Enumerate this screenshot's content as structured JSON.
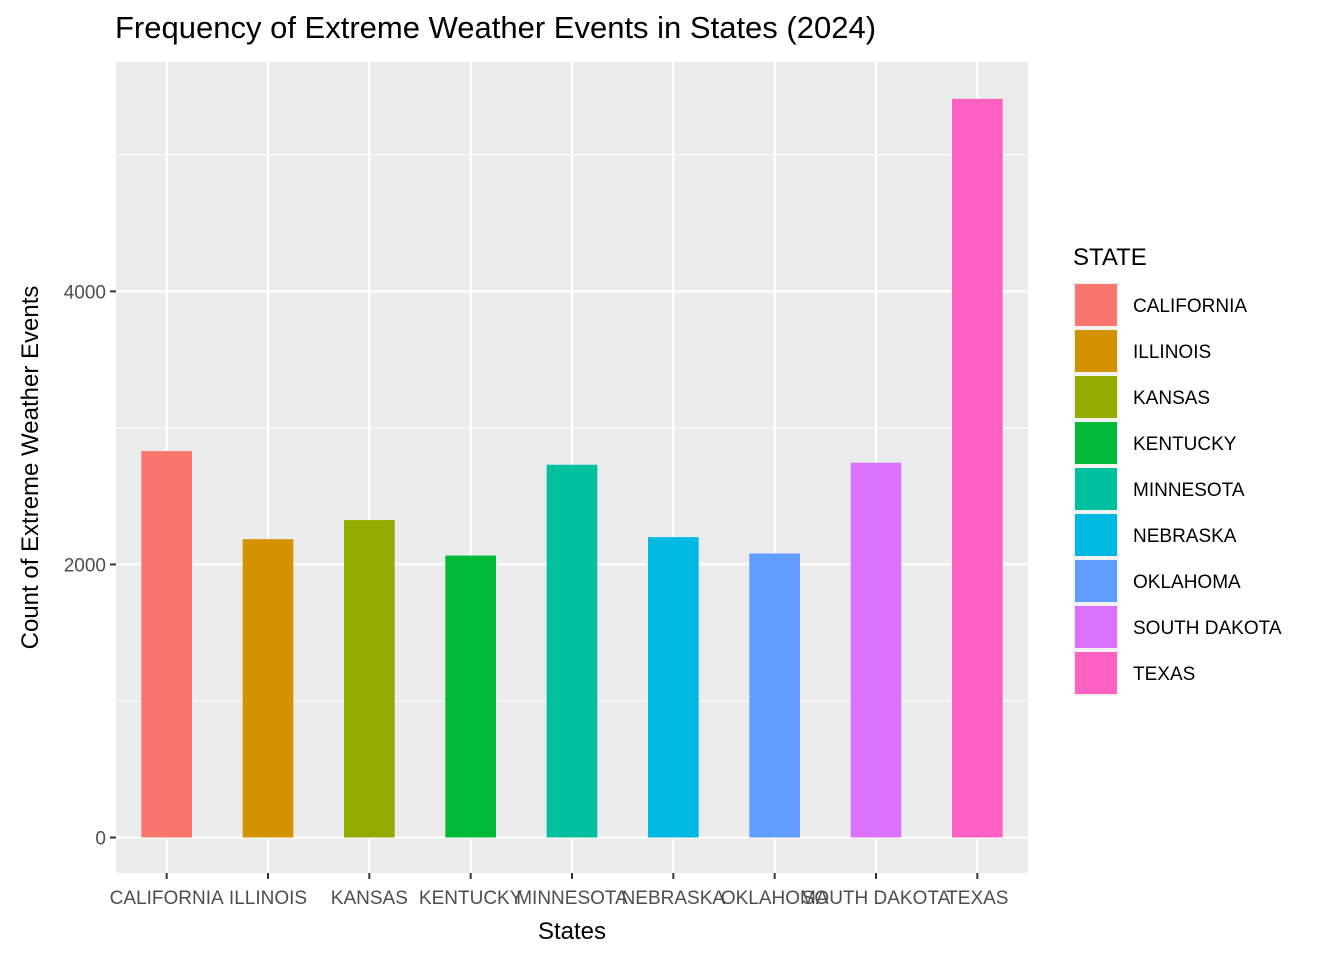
{
  "chart_data": {
    "type": "bar",
    "title": "Frequency of Extreme Weather Events in States (2024)",
    "xlabel": "States",
    "ylabel": "Count of Extreme Weather Events",
    "categories": [
      "CALIFORNIA",
      "ILLINOIS",
      "KANSAS",
      "KENTUCKY",
      "MINNESOTA",
      "NEBRASKA",
      "OKLAHOMA",
      "SOUTH DAKOTA",
      "TEXAS"
    ],
    "values": [
      2830,
      2185,
      2325,
      2065,
      2730,
      2200,
      2080,
      2745,
      5410
    ],
    "colors": [
      "#F8766D",
      "#D39200",
      "#93AA00",
      "#00BA38",
      "#00C19F",
      "#00B9E3",
      "#619CFF",
      "#DB72FB",
      "#FF61C3"
    ],
    "ylim": [
      -260,
      5680
    ],
    "yticks": [
      0,
      2000,
      4000
    ],
    "grid": true,
    "legend": {
      "title": "STATE",
      "position": "right"
    }
  }
}
